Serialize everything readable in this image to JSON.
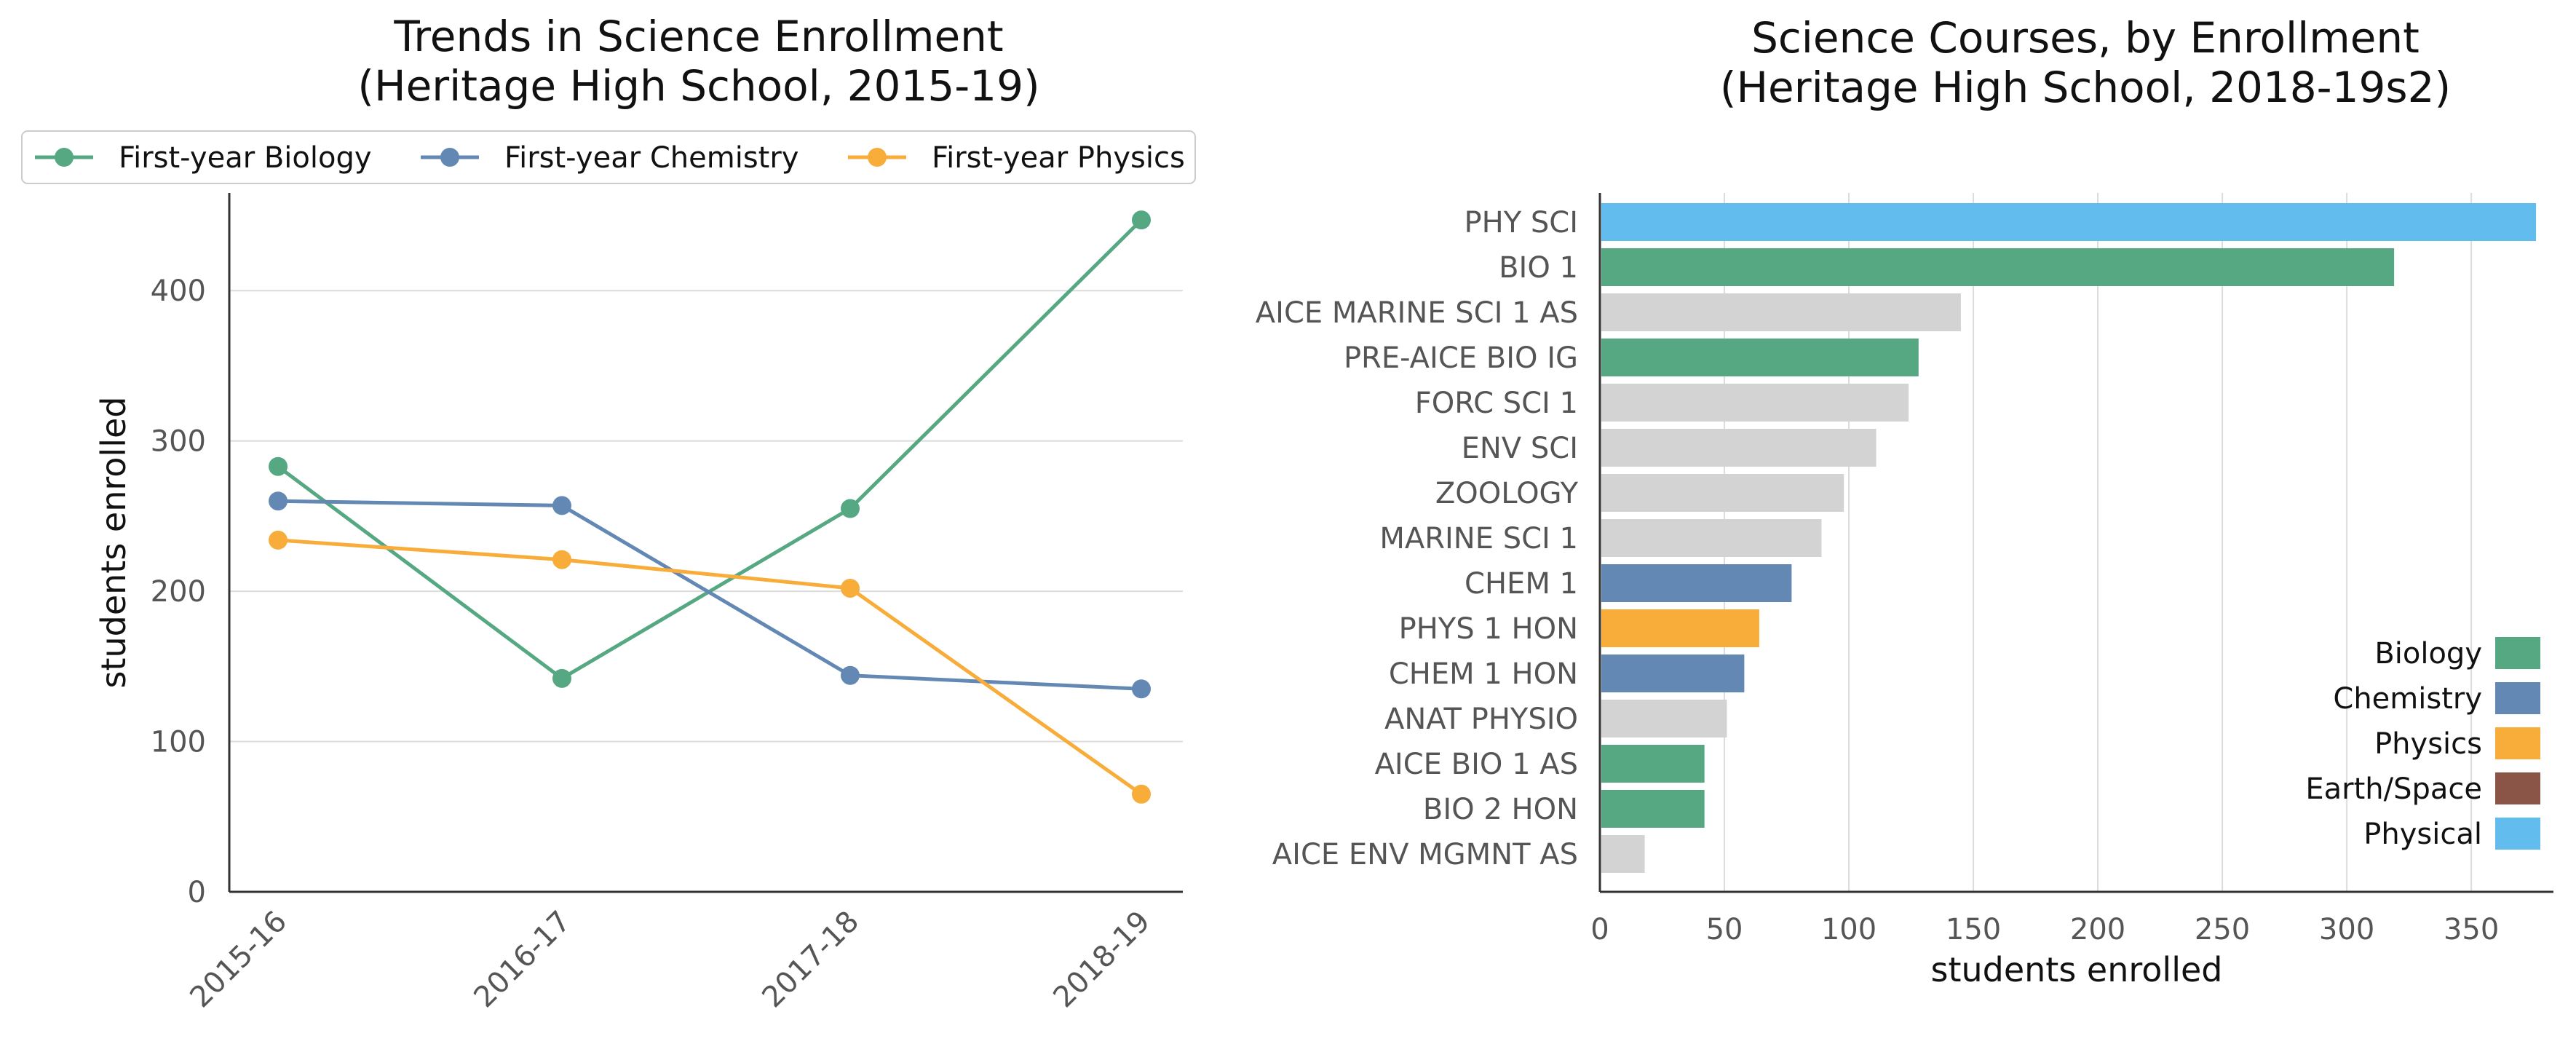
{
  "chart_data": [
    {
      "type": "line",
      "title_line1": "Trends in Science Enrollment",
      "title_line2": "(Heritage High School, 2015-19)",
      "xlabel": "",
      "ylabel": "students enrolled",
      "categories": [
        "2015-16",
        "2016-17",
        "2017-18",
        "2018-19"
      ],
      "ylim": [
        0,
        465
      ],
      "yticks": [
        0,
        100,
        200,
        300,
        400
      ],
      "grid": true,
      "legend_position": "top",
      "series": [
        {
          "name": "First-year Biology",
          "color": "#55a882",
          "values": [
            283,
            142,
            255,
            447
          ]
        },
        {
          "name": "First-year Chemistry",
          "color": "#6488b4",
          "values": [
            260,
            257,
            144,
            135
          ]
        },
        {
          "name": "First-year Physics",
          "color": "#f8ac3a",
          "values": [
            234,
            221,
            202,
            65
          ]
        }
      ]
    },
    {
      "type": "bar",
      "orientation": "horizontal",
      "title_line1": "Science Courses, by Enrollment",
      "title_line2": "(Heritage High School, 2018-19s2)",
      "xlabel": "students enrolled",
      "ylabel": "",
      "xlim": [
        0,
        383
      ],
      "xticks": [
        0,
        50,
        100,
        150,
        200,
        250,
        300,
        350
      ],
      "grid": true,
      "legend_position": "bottom-right",
      "categories": [
        "PHY SCI",
        "BIO 1",
        "AICE MARINE SCI 1 AS",
        "PRE-AICE BIO IG",
        "FORC SCI 1",
        "ENV SCI",
        "ZOOLOGY",
        "MARINE SCI 1",
        "CHEM 1",
        "PHYS 1 HON",
        "CHEM 1 HON",
        "ANAT PHYSIO",
        "AICE BIO 1 AS",
        "BIO 2 HON",
        "AICE ENV MGMNT AS"
      ],
      "values": [
        376,
        319,
        145,
        128,
        124,
        111,
        98,
        89,
        77,
        64,
        58,
        51,
        42,
        42,
        18
      ],
      "bar_groups": [
        "Physical",
        "Biology",
        "Other",
        "Biology",
        "Other",
        "Other",
        "Other",
        "Other",
        "Chemistry",
        "Physics",
        "Chemistry",
        "Other",
        "Biology",
        "Biology",
        "Other"
      ],
      "group_colors": {
        "Biology": "#55a882",
        "Chemistry": "#6488b4",
        "Physics": "#f8ac3a",
        "Earth/Space": "#8a5447",
        "Physical": "#62bdee",
        "Other": "#d3d3d3"
      },
      "legend": [
        {
          "name": "Biology",
          "color": "#55a882"
        },
        {
          "name": "Chemistry",
          "color": "#6488b4"
        },
        {
          "name": "Physics",
          "color": "#f8ac3a"
        },
        {
          "name": "Earth/Space",
          "color": "#8a5447"
        },
        {
          "name": "Physical",
          "color": "#62bdee"
        }
      ]
    }
  ]
}
